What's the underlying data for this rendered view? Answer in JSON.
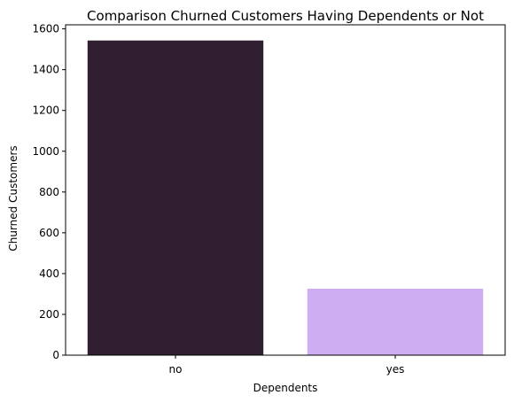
{
  "chart_data": {
    "type": "bar",
    "title": "Comparison Churned Customers Having Dependents or Not",
    "xlabel": "Dependents",
    "ylabel": "Churned Customers",
    "categories": [
      "no",
      "yes"
    ],
    "values": [
      1543,
      326
    ],
    "colors": [
      "#2f1f30",
      "#cfadf2"
    ],
    "ylim": [
      0,
      1620
    ],
    "yticks": [
      0,
      200,
      400,
      600,
      800,
      1000,
      1200,
      1400,
      1600
    ],
    "grid": false,
    "legend": "none"
  }
}
